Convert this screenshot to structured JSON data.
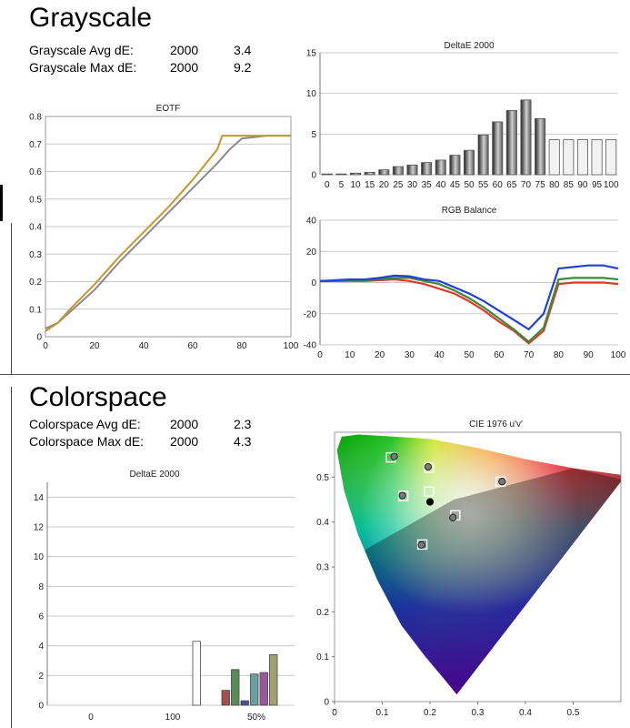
{
  "grayscale": {
    "title": "Grayscale",
    "avg": {
      "label": "Grayscale Avg dE:",
      "std": "2000",
      "value": "3.4"
    },
    "max": {
      "label": "Grayscale Max dE:",
      "std": "2000",
      "value": "9.2"
    }
  },
  "colorspace": {
    "title": "Colorspace",
    "avg": {
      "label": "Colorspace Avg dE:",
      "std": "2000",
      "value": "2.3"
    },
    "max": {
      "label": "Colorspace Max dE:",
      "std": "2000",
      "value": "4.3"
    }
  },
  "chart_data": [
    {
      "id": "eotf",
      "type": "line",
      "title": "EOTF",
      "xlim": [
        0,
        100
      ],
      "ylim": [
        0,
        0.8
      ],
      "xticks": [
        0,
        20,
        40,
        60,
        80,
        100
      ],
      "yticks": [
        0,
        0.1,
        0.2,
        0.3,
        0.4,
        0.5,
        0.6,
        0.7,
        0.8
      ],
      "grid": true,
      "series": [
        {
          "color": "#8a8a8a",
          "x": [
            0,
            5,
            10,
            20,
            30,
            40,
            50,
            60,
            70,
            75,
            80,
            90,
            100
          ],
          "y": [
            0.03,
            0.05,
            0.09,
            0.17,
            0.27,
            0.36,
            0.45,
            0.54,
            0.63,
            0.68,
            0.72,
            0.73,
            0.73
          ]
        },
        {
          "color": "#c8962a",
          "x": [
            0,
            5,
            10,
            20,
            30,
            40,
            50,
            60,
            70,
            72,
            75,
            80,
            90,
            100
          ],
          "y": [
            0.02,
            0.05,
            0.1,
            0.19,
            0.29,
            0.38,
            0.47,
            0.57,
            0.68,
            0.73,
            0.73,
            0.73,
            0.73,
            0.73
          ]
        }
      ]
    },
    {
      "id": "grayscale-delta",
      "type": "bar",
      "title": "DeltaE 2000",
      "categories": [
        "0",
        "5",
        "10",
        "15",
        "20",
        "25",
        "30",
        "35",
        "40",
        "45",
        "50",
        "55",
        "60",
        "65",
        "70",
        "75",
        "80",
        "85",
        "90",
        "95",
        "100"
      ],
      "values": [
        0.1,
        0.1,
        0.2,
        0.3,
        0.6,
        1.0,
        1.2,
        1.5,
        1.8,
        2.4,
        3.0,
        4.9,
        6.5,
        7.9,
        9.2,
        6.9,
        4.3,
        4.3,
        4.3,
        4.3,
        4.3
      ],
      "ylim": [
        0,
        15
      ],
      "yticks": [
        0,
        5,
        10,
        15
      ],
      "grid": true
    },
    {
      "id": "rgb-balance",
      "type": "line",
      "title": "RGB Balance",
      "xlim": [
        0,
        100
      ],
      "ylim": [
        -40,
        40
      ],
      "xticks": [
        0,
        10,
        20,
        30,
        40,
        50,
        60,
        70,
        80,
        90,
        100
      ],
      "yticks": [
        -40,
        -20,
        0,
        20,
        40
      ],
      "grid": true,
      "series": [
        {
          "color": "#e0392b",
          "x": [
            0,
            5,
            10,
            15,
            20,
            25,
            30,
            35,
            40,
            45,
            50,
            55,
            60,
            65,
            70,
            75,
            80,
            85,
            90,
            95,
            100
          ],
          "y": [
            1,
            1,
            1,
            1,
            1.5,
            2,
            1,
            -1,
            -4,
            -7,
            -12,
            -18,
            -25,
            -31,
            -39,
            -31,
            -1,
            0,
            0,
            0,
            -1
          ]
        },
        {
          "color": "#3a8a3a",
          "x": [
            0,
            5,
            10,
            15,
            20,
            25,
            30,
            35,
            40,
            45,
            50,
            55,
            60,
            65,
            70,
            75,
            80,
            85,
            90,
            95,
            100
          ],
          "y": [
            1,
            1,
            1.2,
            1.5,
            2,
            3,
            3,
            1,
            -1,
            -5,
            -10,
            -16,
            -23,
            -30,
            -38,
            -29,
            2,
            3,
            3,
            3,
            2
          ]
        },
        {
          "color": "#1f3fe0",
          "x": [
            0,
            5,
            10,
            15,
            20,
            25,
            30,
            35,
            40,
            45,
            50,
            55,
            60,
            65,
            70,
            75,
            80,
            85,
            90,
            95,
            100
          ],
          "y": [
            1,
            1.5,
            2,
            2,
            3,
            4.5,
            4,
            2,
            1,
            -3,
            -7,
            -12,
            -18,
            -24,
            -30,
            -20,
            9,
            10,
            11,
            11,
            9
          ]
        }
      ]
    },
    {
      "id": "colorspace-delta",
      "type": "bar",
      "title": "DeltaE 2000",
      "categories": [
        "0",
        "100",
        "50%"
      ],
      "ylim": [
        0,
        15
      ],
      "yticks": [
        0,
        2,
        4,
        6,
        8,
        10,
        12,
        14
      ],
      "grid": true,
      "bars": [
        {
          "group": "100",
          "value": 4.3,
          "color": "#ffffff"
        },
        {
          "group": "50%",
          "value": 1.0,
          "color": "#a45050"
        },
        {
          "group": "50%",
          "value": 2.4,
          "color": "#5a8a5a"
        },
        {
          "group": "50%",
          "value": 0.3,
          "color": "#5050a0"
        },
        {
          "group": "50%",
          "value": 2.1,
          "color": "#6aa0a0"
        },
        {
          "group": "50%",
          "value": 2.2,
          "color": "#9a5a9a"
        },
        {
          "group": "50%",
          "value": 3.4,
          "color": "#a0a070"
        }
      ]
    },
    {
      "id": "cie",
      "type": "scatter",
      "title": "CIE 1976 u'v'",
      "xlim": [
        0,
        0.6
      ],
      "ylim": [
        0,
        0.6
      ],
      "xticks": [
        0,
        0.1,
        0.2,
        0.3,
        0.4,
        0.5
      ],
      "yticks": [
        0,
        0.1,
        0.2,
        0.3,
        0.4,
        0.5
      ],
      "targets": [
        [
          0.118,
          0.544
        ],
        [
          0.198,
          0.521
        ],
        [
          0.348,
          0.49
        ],
        [
          0.144,
          0.458
        ],
        [
          0.253,
          0.415
        ],
        [
          0.184,
          0.35
        ],
        [
          0.198,
          0.468
        ]
      ],
      "measured": [
        [
          0.125,
          0.546
        ],
        [
          0.196,
          0.523
        ],
        [
          0.351,
          0.49
        ],
        [
          0.142,
          0.459
        ],
        [
          0.248,
          0.41
        ],
        [
          0.182,
          0.349
        ]
      ],
      "white_point": [
        0.2,
        0.445
      ]
    }
  ]
}
